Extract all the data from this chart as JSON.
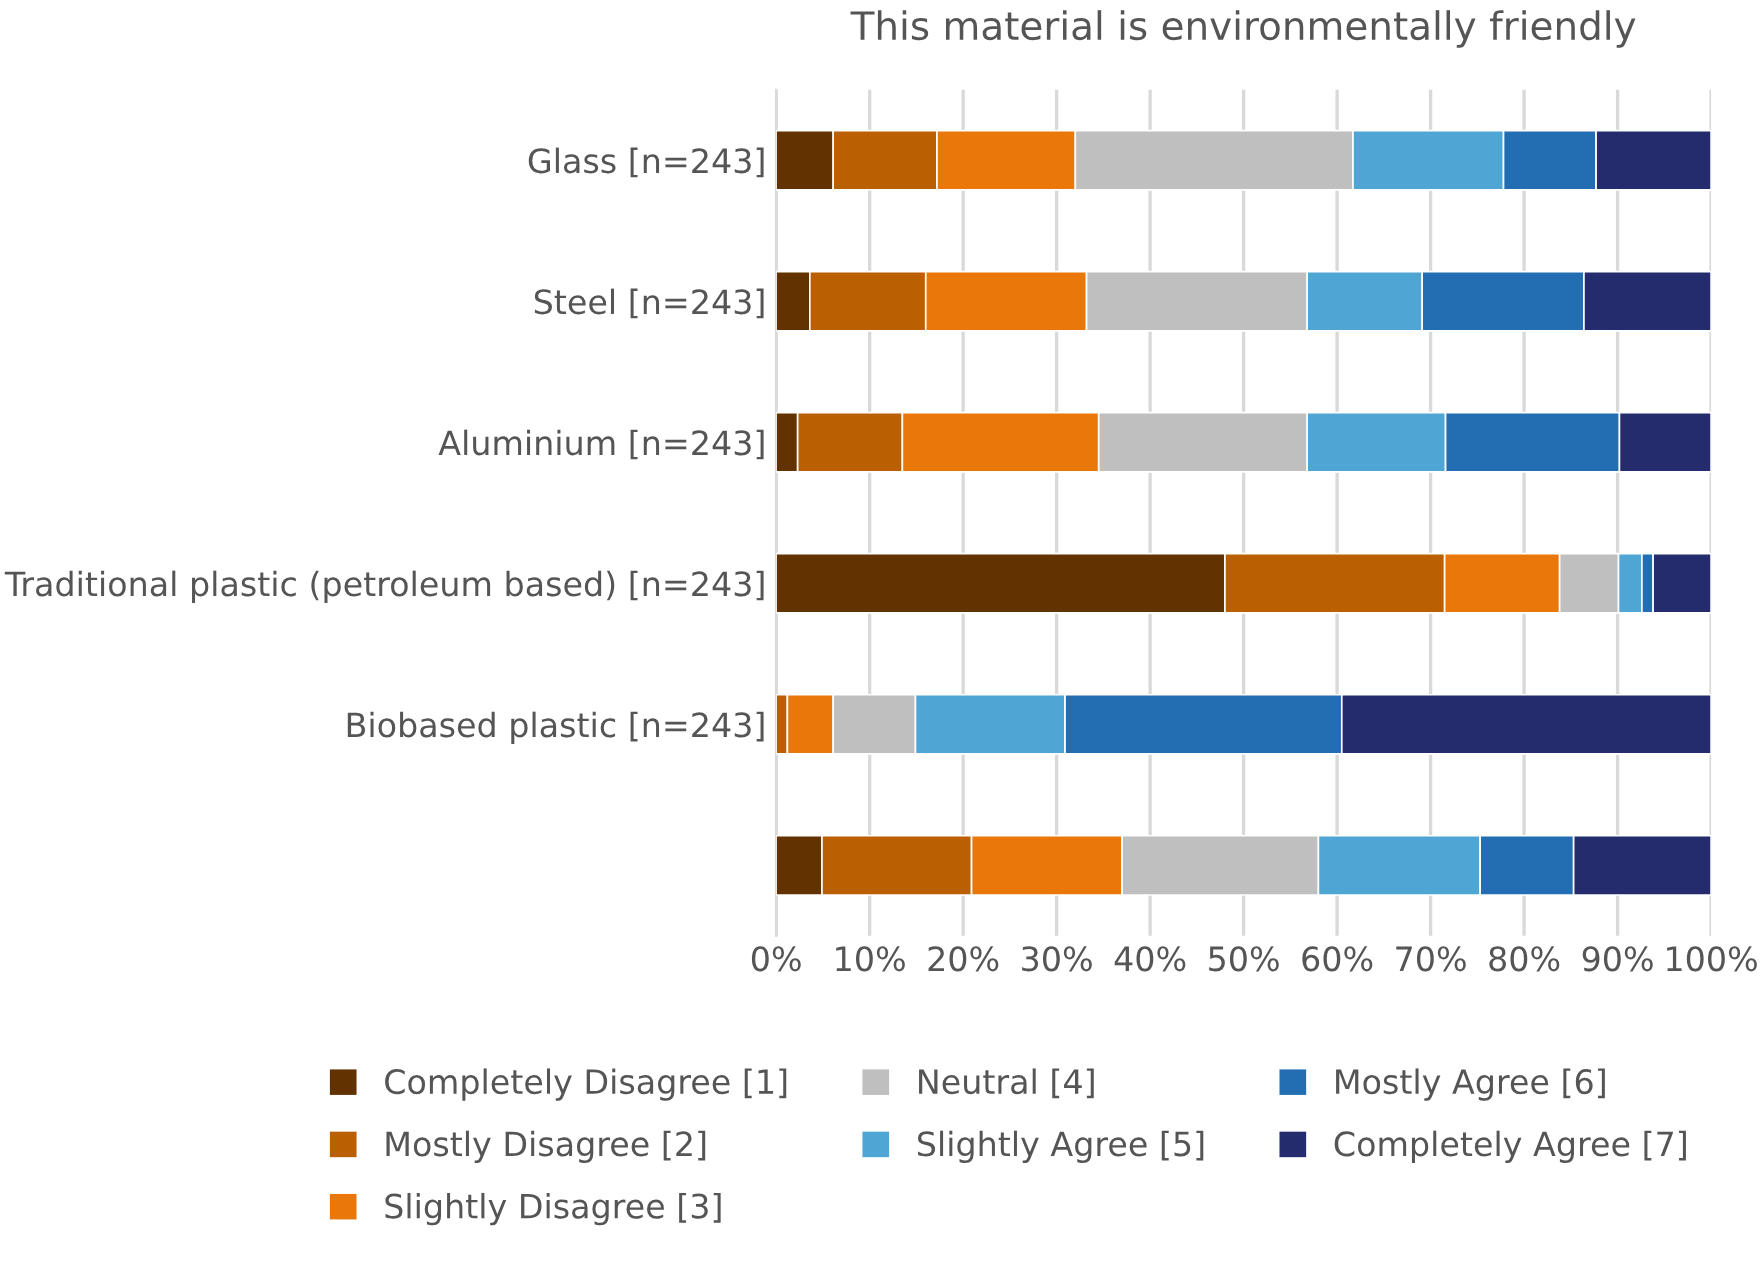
{
  "chart_data": {
    "type": "bar",
    "orientation": "horizontal",
    "stacked": true,
    "title": "This material is environmentally friendly",
    "categories": [
      "Glass [n=243]",
      "Steel [n=243]",
      "Aluminium [n=243]",
      "Traditional plastic (petroleum based) [n=243]",
      "Biobased plastic [n=243]",
      null
    ],
    "series": [
      {
        "name": "Completely Disagree [1]",
        "color": "#633201",
        "values": [
          6.1,
          3.6,
          2.3,
          48.0,
          0,
          4.9
        ]
      },
      {
        "name": "Mostly Disagree [2]",
        "color": "#ba5f02",
        "values": [
          11.1,
          12.4,
          11.2,
          23.5,
          1.2,
          16.0
        ]
      },
      {
        "name": "Slightly Disagree [3]",
        "color": "#e9770a",
        "values": [
          14.8,
          17.2,
          21.0,
          12.3,
          4.9,
          16.1
        ]
      },
      {
        "name": "Neutral [4]",
        "color": "#bfbfbf",
        "values": [
          29.7,
          23.6,
          22.3,
          6.3,
          8.8,
          21.0
        ]
      },
      {
        "name": "Slightly Agree [5]",
        "color": "#4fa5d4",
        "values": [
          16.1,
          12.3,
          14.8,
          2.5,
          16.0,
          17.3
        ]
      },
      {
        "name": "Mostly Agree [6]",
        "color": "#236db2",
        "values": [
          9.9,
          17.3,
          18.6,
          1.2,
          29.6,
          10.0
        ]
      },
      {
        "name": "Completely Agree [7]",
        "color": "#242c6d",
        "values": [
          12.3,
          13.6,
          9.8,
          6.2,
          39.5,
          14.7
        ]
      }
    ],
    "xlim": [
      0,
      100
    ],
    "xticks": [
      {
        "value": 0,
        "label": "0%"
      },
      {
        "value": 10,
        "label": "10%"
      },
      {
        "value": 20,
        "label": "20%"
      },
      {
        "value": 30,
        "label": "30%"
      },
      {
        "value": 40,
        "label": "40%"
      },
      {
        "value": 50,
        "label": "50%"
      },
      {
        "value": 60,
        "label": "60%"
      },
      {
        "value": 70,
        "label": "70%"
      },
      {
        "value": 80,
        "label": "80%"
      },
      {
        "value": 90,
        "label": "90%"
      },
      {
        "value": 100,
        "label": "100%"
      }
    ],
    "grid": "x",
    "legend": "bottom"
  }
}
